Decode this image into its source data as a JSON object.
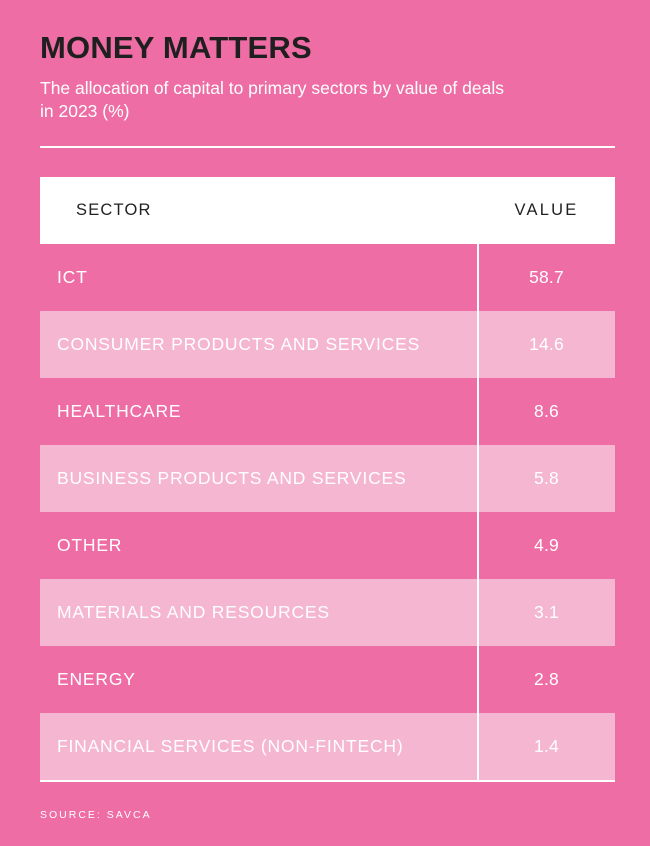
{
  "chart_data": {
    "type": "table",
    "title": "MONEY MATTERS",
    "subtitle": "The allocation of capital to primary sectors by value of deals in 2023 (%)",
    "columns": [
      "SECTOR",
      "VALUE"
    ],
    "rows": [
      {
        "sector": "ICT",
        "value": "58.7"
      },
      {
        "sector": "CONSUMER PRODUCTS AND SERVICES",
        "value": "14.6"
      },
      {
        "sector": "HEALTHCARE",
        "value": "8.6"
      },
      {
        "sector": "BUSINESS PRODUCTS AND SERVICES",
        "value": "5.8"
      },
      {
        "sector": "OTHER",
        "value": "4.9"
      },
      {
        "sector": "MATERIALS AND RESOURCES",
        "value": "3.1"
      },
      {
        "sector": "ENERGY",
        "value": "2.8"
      },
      {
        "sector": "FINANCIAL SERVICES (NON-FINTECH)",
        "value": "1.4"
      }
    ],
    "source": "SOURCE: SAVCA"
  },
  "colors": {
    "background": "#ee6da4",
    "alt_row": "#f5b6d1",
    "header_bg": "#ffffff",
    "title": "#1f1f1f"
  }
}
